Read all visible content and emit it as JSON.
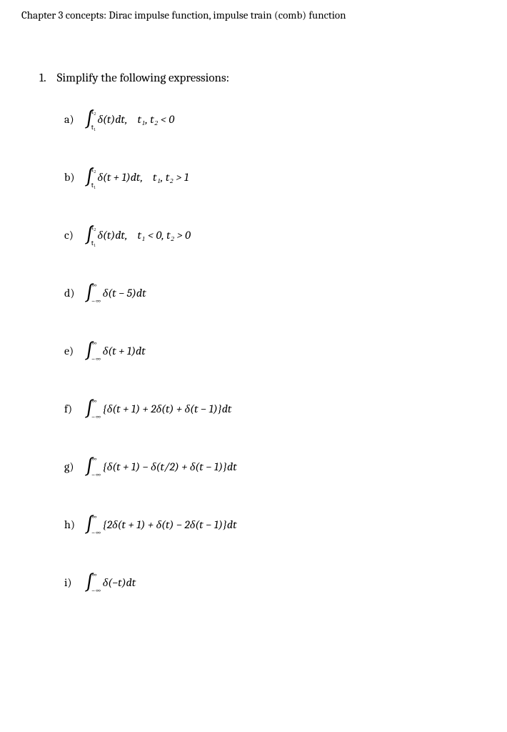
{
  "chapter_header": "Chapter 3 concepts: Dirac impulse function, impulse train (comb) function",
  "problem": {
    "number": "1.",
    "prompt": "Simplify the following expressions:"
  },
  "items": [
    {
      "label": "a)",
      "upper": "t₂",
      "lower": "t₁",
      "integrand": "δ(t)dt,",
      "condition": "t₁, t₂ < 0"
    },
    {
      "label": "b)",
      "upper": "t₂",
      "lower": "t₁",
      "integrand": "δ(t + 1)dt,",
      "condition": "t₁, t₂ > 1"
    },
    {
      "label": "c)",
      "upper": "t₂",
      "lower": "t₁",
      "integrand": "δ(t)dt,",
      "condition": "t₁ < 0,  t₂ > 0"
    },
    {
      "label": "d)",
      "upper": "∞",
      "lower": "−∞",
      "integrand": "δ(t − 5)dt",
      "condition": ""
    },
    {
      "label": "e)",
      "upper": "∞",
      "lower": "−∞",
      "integrand": "δ(t + 1)dt",
      "condition": ""
    },
    {
      "label": "f)",
      "upper": "∞",
      "lower": "−∞",
      "integrand": "{δ(t + 1) + 2δ(t) + δ(t − 1)}dt",
      "condition": ""
    },
    {
      "label": "g)",
      "upper": "∞",
      "lower": "−∞",
      "integrand": "{δ(t + 1) − δ(t/2) + δ(t − 1)}dt",
      "condition": ""
    },
    {
      "label": "h)",
      "upper": "∞",
      "lower": "−∞",
      "integrand": "{2δ(t + 1) + δ(t) − 2δ(t − 1)}dt",
      "condition": ""
    },
    {
      "label": "i)",
      "upper": "∞",
      "lower": "−∞",
      "integrand": "δ(−t)dt",
      "condition": ""
    }
  ]
}
